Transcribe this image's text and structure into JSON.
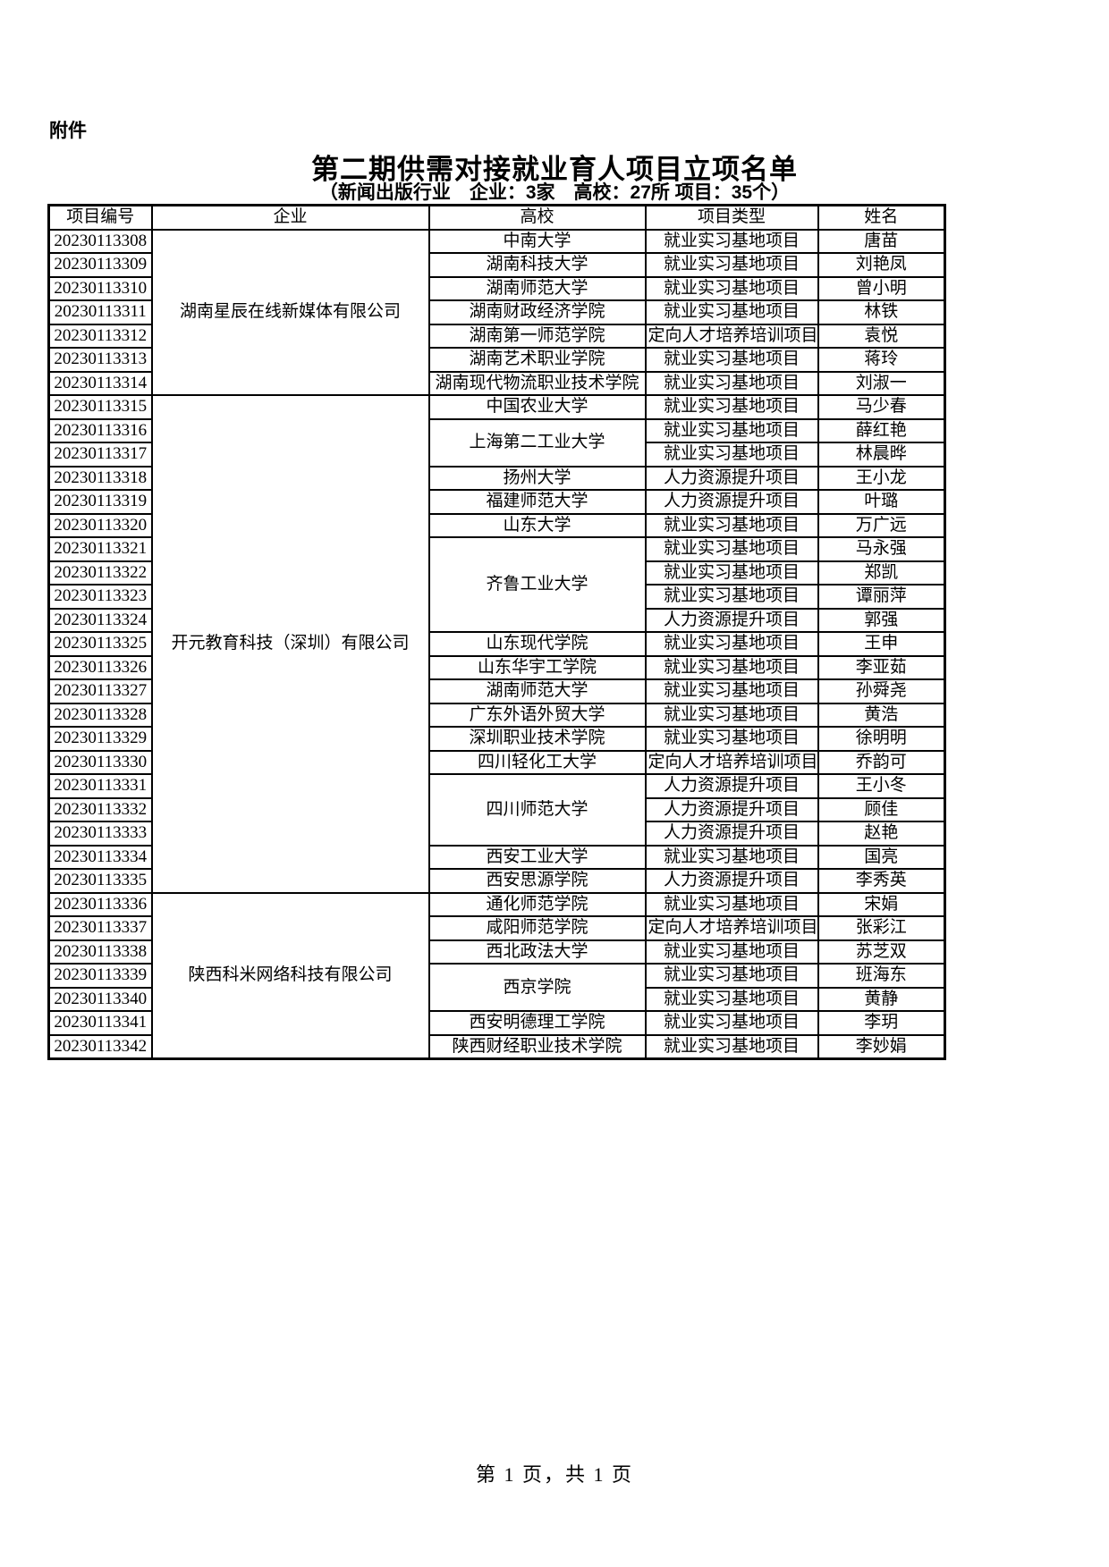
{
  "doc": {
    "attachment_label": "附件",
    "title": "第二期供需对接就业育人项目立项名单",
    "subtitle": "（新闻出版行业　企业：3家　高校：27所 项目：35个）",
    "footer": "第 1 页，共 1 页"
  },
  "table": {
    "headers": [
      "项目编号",
      "企业",
      "高校",
      "项目类型",
      "姓名"
    ],
    "rows": [
      {
        "id": "20230113308",
        "company": "湖南星辰在线新媒体有限公司",
        "company_rowspan": 7,
        "school": "中南大学",
        "type": "就业实习基地项目",
        "name": "唐苗"
      },
      {
        "id": "20230113309",
        "school": "湖南科技大学",
        "type": "就业实习基地项目",
        "name": "刘艳凤"
      },
      {
        "id": "20230113310",
        "school": "湖南师范大学",
        "type": "就业实习基地项目",
        "name": "曾小明"
      },
      {
        "id": "20230113311",
        "school": "湖南财政经济学院",
        "type": "就业实习基地项目",
        "name": "林铁"
      },
      {
        "id": "20230113312",
        "school": "湖南第一师范学院",
        "type": "定向人才培养培训项目",
        "name": "袁悦"
      },
      {
        "id": "20230113313",
        "school": "湖南艺术职业学院",
        "type": "就业实习基地项目",
        "name": "蒋玲"
      },
      {
        "id": "20230113314",
        "school": "湖南现代物流职业技术学院",
        "type": "就业实习基地项目",
        "name": "刘淑一"
      },
      {
        "id": "20230113315",
        "company": "开元教育科技（深圳）有限公司",
        "company_rowspan": 21,
        "school": "中国农业大学",
        "type": "就业实习基地项目",
        "name": "马少春"
      },
      {
        "id": "20230113316",
        "school": "上海第二工业大学",
        "school_rowspan": 2,
        "type": "就业实习基地项目",
        "name": "薛红艳"
      },
      {
        "id": "20230113317",
        "type": "就业实习基地项目",
        "name": "林晨晔"
      },
      {
        "id": "20230113318",
        "school": "扬州大学",
        "type": "人力资源提升项目",
        "name": "王小龙"
      },
      {
        "id": "20230113319",
        "school": "福建师范大学",
        "type": "人力资源提升项目",
        "name": "叶璐"
      },
      {
        "id": "20230113320",
        "school": "山东大学",
        "type": "就业实习基地项目",
        "name": "万广远"
      },
      {
        "id": "20230113321",
        "school": "齐鲁工业大学",
        "school_rowspan": 4,
        "type": "就业实习基地项目",
        "name": "马永强"
      },
      {
        "id": "20230113322",
        "type": "就业实习基地项目",
        "name": "郑凯"
      },
      {
        "id": "20230113323",
        "type": "就业实习基地项目",
        "name": "谭丽萍"
      },
      {
        "id": "20230113324",
        "type": "人力资源提升项目",
        "name": "郭强"
      },
      {
        "id": "20230113325",
        "school": "山东现代学院",
        "type": "就业实习基地项目",
        "name": "王申"
      },
      {
        "id": "20230113326",
        "school": "山东华宇工学院",
        "type": "就业实习基地项目",
        "name": "李亚茹"
      },
      {
        "id": "20230113327",
        "school": "湖南师范大学",
        "type": "就业实习基地项目",
        "name": "孙舜尧"
      },
      {
        "id": "20230113328",
        "school": "广东外语外贸大学",
        "type": "就业实习基地项目",
        "name": "黄浩"
      },
      {
        "id": "20230113329",
        "school": "深圳职业技术学院",
        "type": "就业实习基地项目",
        "name": "徐明明"
      },
      {
        "id": "20230113330",
        "school": "四川轻化工大学",
        "type": "定向人才培养培训项目",
        "name": "乔韵可"
      },
      {
        "id": "20230113331",
        "school": "四川师范大学",
        "school_rowspan": 3,
        "type": "人力资源提升项目",
        "name": "王小冬"
      },
      {
        "id": "20230113332",
        "type": "人力资源提升项目",
        "name": "顾佳"
      },
      {
        "id": "20230113333",
        "type": "人力资源提升项目",
        "name": "赵艳"
      },
      {
        "id": "20230113334",
        "school": "西安工业大学",
        "type": "就业实习基地项目",
        "name": "国亮"
      },
      {
        "id": "20230113335",
        "school": "西安思源学院",
        "type": "人力资源提升项目",
        "name": "李秀英"
      },
      {
        "id": "20230113336",
        "company": "陕西科米网络科技有限公司",
        "company_rowspan": 7,
        "school": "通化师范学院",
        "type": "就业实习基地项目",
        "name": "宋娟"
      },
      {
        "id": "20230113337",
        "school": "咸阳师范学院",
        "type": "定向人才培养培训项目",
        "name": "张彩江"
      },
      {
        "id": "20230113338",
        "school": "西北政法大学",
        "type": "就业实习基地项目",
        "name": "苏芝双"
      },
      {
        "id": "20230113339",
        "school": "西京学院",
        "school_rowspan": 2,
        "type": "就业实习基地项目",
        "name": "班海东"
      },
      {
        "id": "20230113340",
        "type": "就业实习基地项目",
        "name": "黄静"
      },
      {
        "id": "20230113341",
        "school": "西安明德理工学院",
        "type": "就业实习基地项目",
        "name": "李玥"
      },
      {
        "id": "20230113342",
        "school": "陕西财经职业技术学院",
        "type": "就业实习基地项目",
        "name": "李妙娟"
      }
    ]
  }
}
